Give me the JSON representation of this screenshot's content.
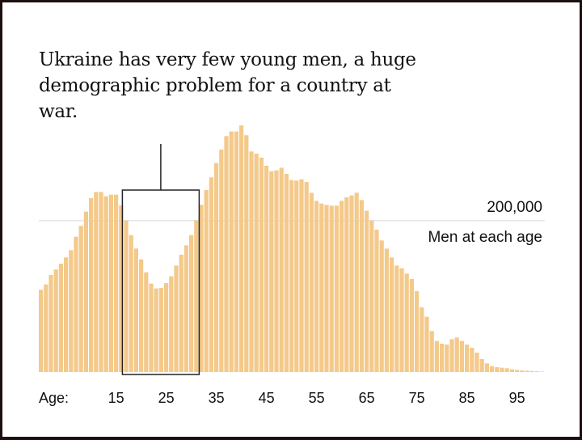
{
  "chart_data": {
    "type": "bar",
    "title": "Ukraine has very few young men, a huge demographic problem for a country at war.",
    "xlabel": "Age:",
    "ylabel": "Men at each age",
    "x": [
      0,
      1,
      2,
      3,
      4,
      5,
      6,
      7,
      8,
      9,
      10,
      11,
      12,
      13,
      14,
      15,
      16,
      17,
      18,
      19,
      20,
      21,
      22,
      23,
      24,
      25,
      26,
      27,
      28,
      29,
      30,
      31,
      32,
      33,
      34,
      35,
      36,
      37,
      38,
      39,
      40,
      41,
      42,
      43,
      44,
      45,
      46,
      47,
      48,
      49,
      50,
      51,
      52,
      53,
      54,
      55,
      56,
      57,
      58,
      59,
      60,
      61,
      62,
      63,
      64,
      65,
      66,
      67,
      68,
      69,
      70,
      71,
      72,
      73,
      74,
      75,
      76,
      77,
      78,
      79,
      80,
      81,
      82,
      83,
      84,
      85,
      86,
      87,
      88,
      89,
      90,
      91,
      92,
      93,
      94,
      95,
      96,
      97,
      98,
      99,
      100
    ],
    "values": [
      108600,
      115700,
      128200,
      135300,
      143100,
      151300,
      160900,
      178700,
      193000,
      211800,
      229600,
      237800,
      237800,
      232100,
      234200,
      234200,
      220000,
      200100,
      180800,
      163000,
      148800,
      131700,
      116800,
      110400,
      111100,
      117500,
      126400,
      140600,
      154900,
      167300,
      180800,
      200100,
      220700,
      240300,
      257000,
      276000,
      293700,
      311500,
      317600,
      317600,
      325700,
      312600,
      291200,
      288400,
      283000,
      272300,
      265200,
      266300,
      269800,
      261700,
      253500,
      252800,
      254500,
      251000,
      236700,
      226000,
      222500,
      220700,
      219700,
      219700,
      226000,
      230700,
      233200,
      236700,
      227100,
      212900,
      200000,
      188000,
      173700,
      163000,
      151300,
      140600,
      137000,
      130000,
      122800,
      106800,
      85400,
      73000,
      54100,
      41000,
      37400,
      36300,
      43400,
      45600,
      41000,
      36300,
      32000,
      25600,
      17100,
      11400,
      7800,
      6400,
      5700,
      5000,
      3600,
      2800,
      2100,
      1800,
      1400,
      1000,
      600
    ],
    "xticks": [
      "15",
      "25",
      "35",
      "45",
      "55",
      "65",
      "75",
      "85",
      "95"
    ],
    "xtick_values": [
      15,
      25,
      35,
      45,
      55,
      65,
      75,
      85,
      95
    ],
    "gridline_value": 200000,
    "gridline_label": "200,000",
    "ylim": [
      0,
      340000
    ],
    "xlim": [
      0,
      100
    ],
    "highlight_range": [
      17,
      31
    ],
    "bar_color": "#f4c98a",
    "grid": "single reference line"
  }
}
